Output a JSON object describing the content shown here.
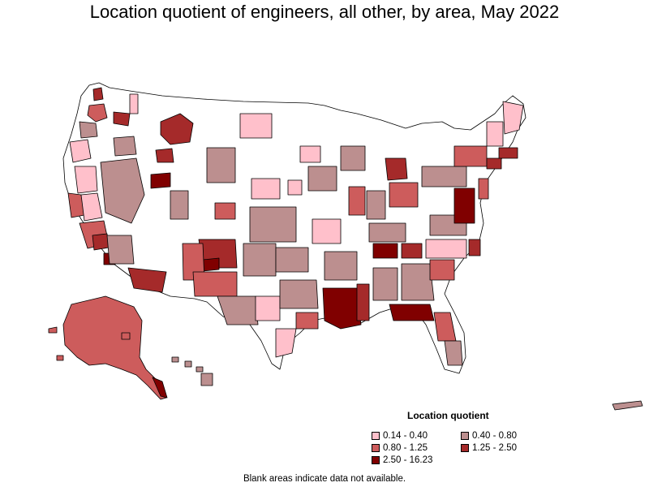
{
  "title": "Location quotient of engineers, all other, by area, May 2022",
  "legend": {
    "title": "Location quotient",
    "items": [
      {
        "label": "0.14 - 0.40",
        "color": "#ffc0cb"
      },
      {
        "label": "0.40 - 0.80",
        "color": "#bc8f8f"
      },
      {
        "label": "0.80 - 1.25",
        "color": "#cd5c5c"
      },
      {
        "label": "1.25 - 2.50",
        "color": "#a52a2a"
      },
      {
        "label": "2.50 - 16.23",
        "color": "#800000"
      }
    ]
  },
  "note": "Blank areas indicate data not available.",
  "colors": {
    "none": "#ffffff",
    "border": "#000000"
  }
}
